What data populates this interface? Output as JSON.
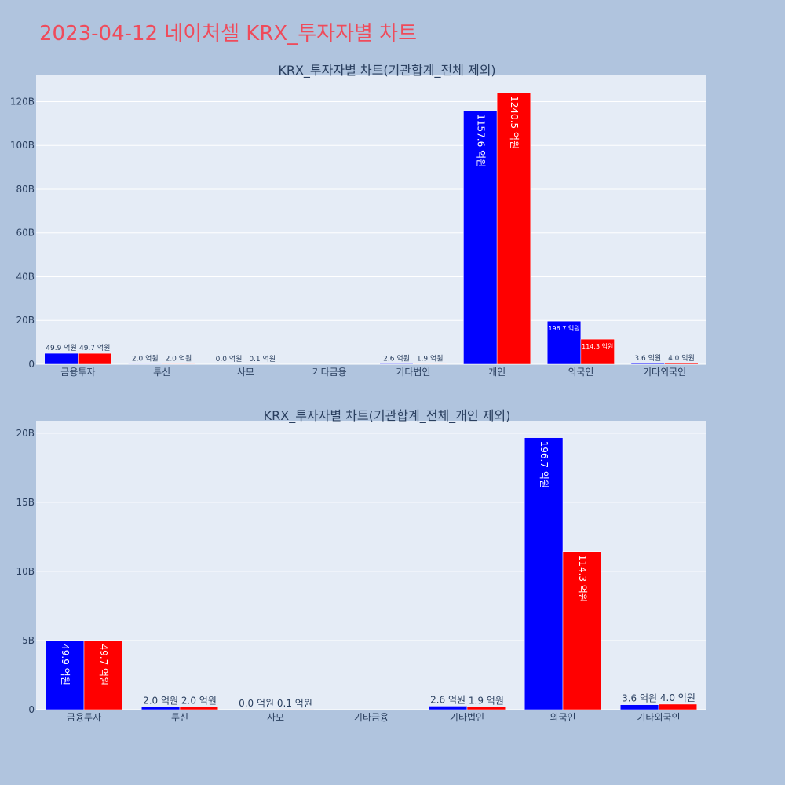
{
  "page": {
    "title": "2023-04-12 네이처셀 KRX_투자자별 차트"
  },
  "colors": {
    "background": "#b0c4de",
    "plot_bg": "#e5ecf6",
    "grid": "#ffffff",
    "series1": "#0000ff",
    "series2": "#ff0000",
    "title": "#ef4b5b",
    "axis_text": "#2a3f5f"
  },
  "chart_data": [
    {
      "type": "bar",
      "title": "KRX_투자자별 차트(기관합계_전체 제외)",
      "categories": [
        "금융투자",
        "투신",
        "사모",
        "기타금융",
        "기타법인",
        "개인",
        "외국인",
        "기타외국인"
      ],
      "series": [
        {
          "color": "#0000ff",
          "values": [
            4.99,
            0.2,
            0.0,
            0.0,
            0.26,
            115.76,
            19.67,
            0.36
          ],
          "labels": [
            "49.9 억원",
            "2.0 억원",
            "0.0 억원",
            "",
            "2.6 억원",
            "1157.6 억원",
            "196.7 억원",
            "3.6 억원"
          ]
        },
        {
          "color": "#ff0000",
          "values": [
            4.97,
            0.2,
            0.01,
            0.0,
            0.19,
            124.05,
            11.43,
            0.4
          ],
          "labels": [
            "49.7 억원",
            "2.0 억원",
            "0.1 억원",
            "",
            "1.9 억원",
            "1240.5 억원",
            "114.3 억원",
            "4.0 억원"
          ]
        }
      ],
      "y_unit": "B",
      "ylim": [
        0,
        132
      ],
      "yticks": [
        0,
        20,
        40,
        60,
        80,
        100,
        120
      ],
      "ytick_labels": [
        "0",
        "20B",
        "40B",
        "60B",
        "80B",
        "100B",
        "120B"
      ],
      "grid": true
    },
    {
      "type": "bar",
      "title": "KRX_투자자별 차트(기관합계_전체_개인 제외)",
      "categories": [
        "금융투자",
        "투신",
        "사모",
        "기타금융",
        "기타법인",
        "외국인",
        "기타외국인"
      ],
      "series": [
        {
          "color": "#0000ff",
          "values": [
            4.99,
            0.2,
            0.0,
            0.0,
            0.26,
            19.67,
            0.36
          ],
          "labels": [
            "49.9 억원",
            "2.0 억원",
            "0.0 억원",
            "",
            "2.6 억원",
            "196.7 억원",
            "3.6 억원"
          ]
        },
        {
          "color": "#ff0000",
          "values": [
            4.97,
            0.2,
            0.01,
            0.0,
            0.19,
            11.43,
            0.4
          ],
          "labels": [
            "49.7 억원",
            "2.0 억원",
            "0.1 억원",
            "",
            "1.9 억원",
            "114.3 억원",
            "4.0 억원"
          ]
        }
      ],
      "y_unit": "B",
      "ylim": [
        0,
        20.9
      ],
      "yticks": [
        0,
        5,
        10,
        15,
        20
      ],
      "ytick_labels": [
        "0",
        "5B",
        "10B",
        "15B",
        "20B"
      ],
      "grid": true
    }
  ]
}
